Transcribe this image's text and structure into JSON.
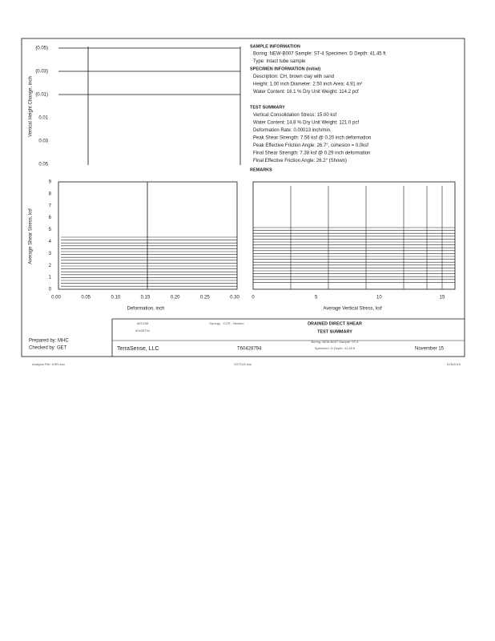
{
  "height_plot": {
    "y_label": "Vertical Height Change, inch",
    "ticks": [
      "(0.05)",
      "(0.03)",
      "(0.01)",
      "0.01",
      "0.03",
      "0.05"
    ]
  },
  "sample_information": {
    "heading": "SAMPLE INFORMATION",
    "lines": [
      "Boring:  NEW-B007      Sample:  ST-4     Specimen:  D     Depth:  41.45 ft",
      "Type:  Intact tube sample"
    ]
  },
  "specimen_information": {
    "heading": "SPECIMEN INFORMATION (Initial)",
    "lines": [
      "Description:  CH, brown clay with sand",
      "Height:  1.00 inch     Diameter:  2.50 inch     Area:  4.91 in²",
      "Water Content:  16.1 %     Dry Unit Weight:  114.2 pcf"
    ]
  },
  "test_summary": {
    "heading": "TEST SUMMARY",
    "lines": [
      "Vertical Consolidation Stress:  15.00 ksf",
      "Water Content:  14.8 %     Dry Unit Weight:  121.0 pcf",
      "Deformation Rate:  0.00013 inch/min.",
      "Peak Shear Strength:  7.56 ksf  @ 0.20 inch deformation",
      "Peak Effective Friction Angle:  26.7°,  cohesion = 0.0ksf",
      "Final Shear Strength:  7.38 ksf  @ 0.29 inch deformation",
      "Final Effective Friction Angle:  26.2°  (Shown)"
    ]
  },
  "remarks": {
    "heading": "REMARKS"
  },
  "shear_plot": {
    "y_label": "Average Shear Stress, ksf",
    "y_ticks": [
      "0",
      "1",
      "2",
      "3",
      "4",
      "5",
      "6",
      "7",
      "8",
      "9"
    ],
    "x_label": "Deformation, inch",
    "x_ticks": [
      "0.00",
      "0.05",
      "0.10",
      "0.15",
      "0.20",
      "0.25",
      "0.30"
    ]
  },
  "envelope_plot": {
    "x_label": "Average Vertical Stress, ksf",
    "x_ticks": [
      "0",
      "5",
      "10",
      "15"
    ]
  },
  "title_block": {
    "client": "AECOM",
    "client_project": "60428794",
    "project": "Dynegy - CCR - Newton",
    "title": "DRAINED DIRECT SHEAR",
    "subtitle": "TEST SUMMARY",
    "boring_line": "Boring:   NEW-B007        Sample:   ST-4",
    "specimen_line": "Specimen:   D     Depth:   41.45 ft",
    "prepared": "Prepared   by:   MHC",
    "checked": "Checked   by:   GET",
    "company": "TerraSense,  LLC",
    "job": "T60428794",
    "date": "November   15"
  },
  "footer": {
    "left": "Analysis File: DSR.xlsx",
    "center": "DST022.dat",
    "right": "11/6/2015"
  }
}
